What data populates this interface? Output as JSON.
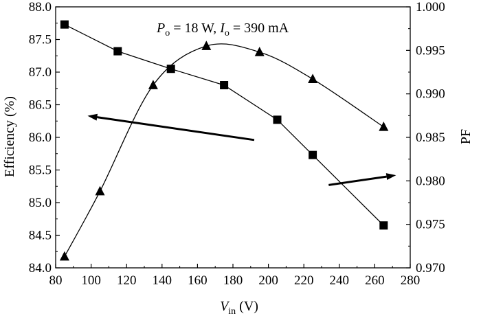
{
  "chart_data": {
    "type": "line",
    "annotation": {
      "p_symbol": "P",
      "p_sub": "o",
      "p_rest": " = 18 W, ",
      "i_symbol": "I",
      "i_sub": "o",
      "i_rest": " = 390 mA"
    },
    "xlabel": {
      "symbol": "V",
      "sub": "in",
      "unit": " (V)"
    },
    "ylabel_left": "Efficiency (%)",
    "ylabel_right": "PF",
    "xlim": [
      80,
      280
    ],
    "ylim_left": [
      84.0,
      88.0
    ],
    "ylim_right": [
      0.97,
      1.0
    ],
    "x_ticks": [
      "80",
      "100",
      "120",
      "140",
      "160",
      "180",
      "200",
      "220",
      "240",
      "260",
      "280"
    ],
    "y_left_ticks": [
      "84.0",
      "84.5",
      "85.0",
      "85.5",
      "86.0",
      "86.5",
      "87.0",
      "87.5",
      "88.0"
    ],
    "y_right_ticks": [
      "0.970",
      "0.975",
      "0.980",
      "0.985",
      "0.990",
      "0.995",
      "1.000"
    ],
    "grid": false,
    "series": [
      {
        "axis": "left",
        "marker": "square",
        "points": [
          [
            85,
            87.73
          ],
          [
            115,
            87.32
          ],
          [
            145,
            87.05
          ],
          [
            175,
            86.8
          ],
          [
            205,
            86.27
          ],
          [
            225,
            85.73
          ],
          [
            265,
            84.65
          ]
        ]
      },
      {
        "axis": "right",
        "marker": "triangle",
        "points": [
          [
            85,
            0.9713
          ],
          [
            105,
            0.9788
          ],
          [
            135,
            0.991
          ],
          [
            165,
            0.9955
          ],
          [
            195,
            0.9948
          ],
          [
            225,
            0.9917
          ],
          [
            265,
            0.9862
          ]
        ]
      }
    ],
    "arrows": [
      {
        "points_to": "left",
        "from": [
          192,
          85.96
        ],
        "to": [
          98,
          86.33
        ]
      },
      {
        "points_to": "right",
        "from": [
          234,
          85.27
        ],
        "to": [
          272,
          85.42
        ]
      }
    ]
  }
}
